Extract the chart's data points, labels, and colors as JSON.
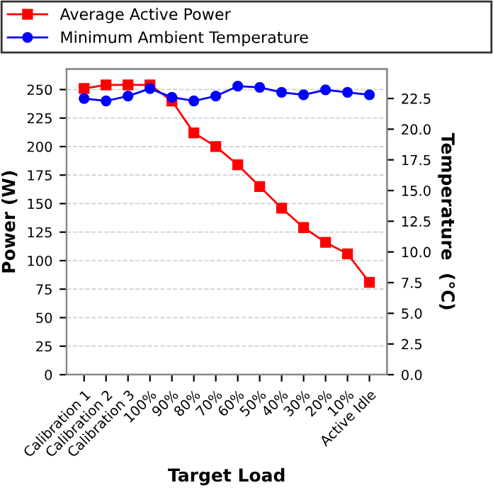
{
  "chart_data": {
    "type": "line",
    "xlabel": "Target Load",
    "ylabel": "Power (W)",
    "y2label": "Temperature  (°C)",
    "categories": [
      "Calibration 1",
      "Calibration 2",
      "Calibration 3",
      "100%",
      "90%",
      "80%",
      "70%",
      "60%",
      "50%",
      "40%",
      "30%",
      "20%",
      "10%",
      "Active Idle"
    ],
    "series": [
      {
        "name": "Average Active Power",
        "color": "#ff0000",
        "marker": "square",
        "values": [
          251,
          254,
          254,
          254,
          240,
          212,
          200,
          184,
          165,
          146,
          129,
          116,
          106,
          81
        ]
      },
      {
        "name": "Minimum Ambient Temperature",
        "color": "#0000ff",
        "marker": "circle",
        "axis": "y2",
        "values": [
          22.5,
          22.3,
          22.7,
          23.3,
          22.6,
          22.3,
          22.7,
          23.5,
          23.4,
          23.0,
          22.8,
          23.2,
          23.0,
          22.8
        ]
      }
    ],
    "ylim": [
      0,
      268
    ],
    "yticks": [
      0,
      25,
      50,
      75,
      100,
      125,
      150,
      175,
      200,
      225,
      250
    ],
    "y2lim": [
      0,
      24.9
    ],
    "y2ticks": [
      {
        "value": 0,
        "label": "0.0"
      },
      {
        "value": 2.5,
        "label": "2.5"
      },
      {
        "value": 5,
        "label": "5.0"
      },
      {
        "value": 7.5,
        "label": "7.5"
      },
      {
        "value": 10,
        "label": "10.0"
      },
      {
        "value": 12.5,
        "label": "12.5"
      },
      {
        "value": 15,
        "label": "15.0"
      },
      {
        "value": 17.5,
        "label": "17.5"
      },
      {
        "value": 20,
        "label": "20.0"
      },
      {
        "value": 22.5,
        "label": "22.5"
      }
    ],
    "grid": "y",
    "legend": "top",
    "line_style": "solid"
  }
}
